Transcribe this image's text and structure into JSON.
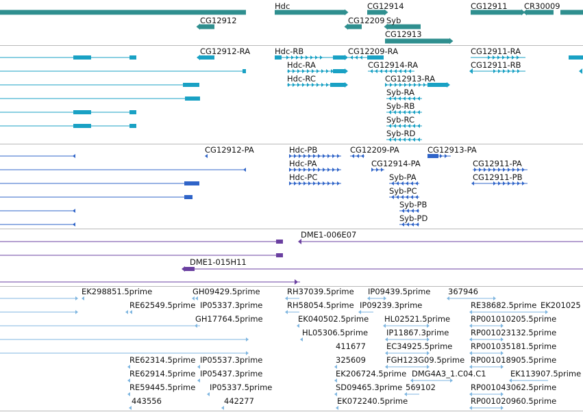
{
  "colors": {
    "gene": "#2f8f8f",
    "transcript": "#19a1c4",
    "protein": "#2f64c8",
    "clone": "#6a3fa0",
    "est": "#7fb6e0",
    "separator": "#b8b8b8"
  },
  "gene_track": {
    "labels": [
      "Hdc",
      "CG12914",
      "CG12911",
      "CR30009",
      "CG12912",
      "CG12209",
      "Syb",
      "CG12913"
    ]
  },
  "transcript_track": {
    "labels": [
      "CG12912-RA",
      "Hdc-RB",
      "CG12209-RA",
      "CG12911-RA",
      "Hdc-RA",
      "CG12914-RA",
      "CG12911-RB",
      "Hdc-RC",
      "CG12913-RA",
      "Syb-RA",
      "Syb-RB",
      "Syb-RC",
      "Syb-RD"
    ]
  },
  "protein_track": {
    "labels": [
      "CG12912-PA",
      "Hdc-PB",
      "CG12209-PA",
      "CG12913-PA",
      "Hdc-PA",
      "CG12914-PA",
      "CG12911-PA",
      "Hdc-PC",
      "Syb-PA",
      "CG12911-PB",
      "Syb-PC",
      "Syb-PB",
      "Syb-PD"
    ]
  },
  "clone_track": {
    "labels": [
      "DME1-006E07",
      "DME1-015H11"
    ]
  },
  "est_track": {
    "labels": [
      "EK298851.5prime",
      "GH09429.5prime",
      "RH37039.5prime",
      "IP09439.5prime",
      "367946",
      "RE62549.5prime",
      "IP05337.3prime",
      "RH58054.5prime",
      "IP09239.3prime",
      "RE38682.5prime",
      "EK201025",
      "GH17764.5prime",
      "EK040502.5prime",
      "HL02521.5prime",
      "RP001010205.5prime",
      "HL05306.5prime",
      "IP11867.3prime",
      "RP001023132.5prime",
      "411677",
      "EC34925.5prime",
      "RP001035181.5prime",
      "RE62314.5prime",
      "IP05537.3prime",
      "325609",
      "FGH123G09.5prime",
      "RP001018905.5prime",
      "RE62914.5prime",
      "IP05437.3prime",
      "EK206724.5prime",
      "DMG4A3_1.C04.C1",
      "EK113907.5prime",
      "RE59445.5prime",
      "IP05337.5prime",
      "SD09465.3prime",
      "569102",
      "RP001043062.5prime",
      "443556",
      "442277",
      "EK072240.5prime",
      "RP001020960.5prime"
    ]
  }
}
